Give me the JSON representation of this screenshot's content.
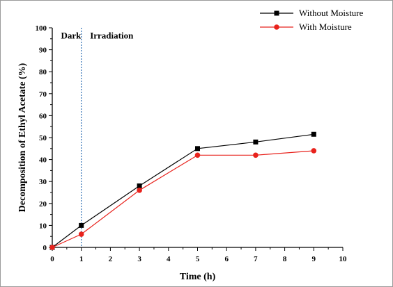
{
  "chart_data": {
    "type": "line",
    "title": "",
    "xlabel": "Time (h)",
    "ylabel": "Decomposition of Ethyl Acetate (%)",
    "xlim": [
      0,
      10
    ],
    "ylim": [
      0,
      100
    ],
    "x_ticks": [
      0,
      1,
      2,
      3,
      4,
      5,
      6,
      7,
      8,
      9,
      10
    ],
    "y_ticks": [
      0,
      10,
      20,
      30,
      40,
      50,
      60,
      70,
      80,
      90,
      100
    ],
    "grid": false,
    "legend_position": "top-right",
    "annotations": [
      {
        "text": "Dark",
        "x": 0.3,
        "y": 97
      },
      {
        "text": "Irradiation",
        "x": 1.3,
        "y": 97
      }
    ],
    "divider_x": 1,
    "series": [
      {
        "name": "Without Moisture",
        "color": "#000000",
        "marker": "square",
        "x": [
          0,
          1,
          3,
          5,
          7,
          9
        ],
        "y": [
          0,
          10,
          28,
          45,
          48,
          51.5
        ]
      },
      {
        "name": "With Moisture",
        "color": "#e8221c",
        "marker": "circle",
        "x": [
          0,
          1,
          3,
          5,
          7,
          9
        ],
        "y": [
          0,
          6,
          26,
          42,
          42,
          44
        ]
      }
    ]
  }
}
